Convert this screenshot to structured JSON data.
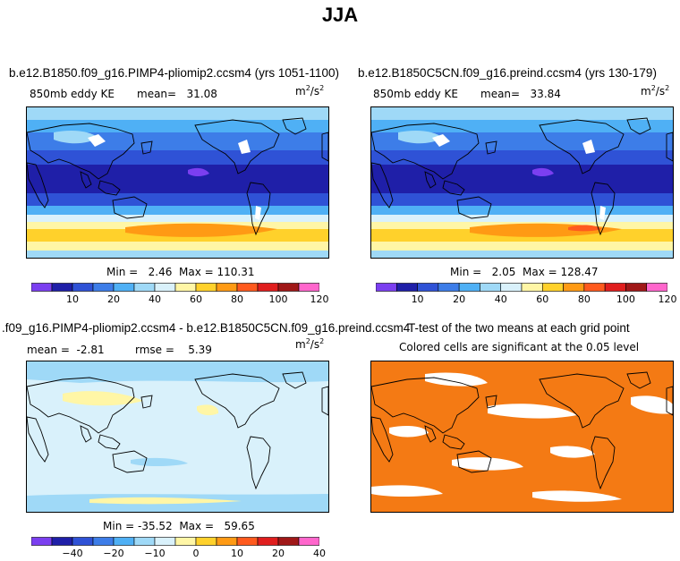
{
  "figure": {
    "title": "JJA"
  },
  "colors": {
    "bands": [
      "#7b3ff0",
      "#1f1fa8",
      "#2f52d6",
      "#3d7de8",
      "#4fb0f5",
      "#9fd9f7",
      "#d9f1fb",
      "#fff6a6",
      "#ffd12b",
      "#ff9a14",
      "#ff5a1e",
      "#e01e1e",
      "#a01818",
      "#ff66cc"
    ],
    "diff": [
      "#7b3ff0",
      "#1f1fa8",
      "#2f52d6",
      "#3d7de8",
      "#4fb0f5",
      "#9fd9f7",
      "#d9f1fb",
      "#fff6a6",
      "#ffd12b",
      "#ff9a14",
      "#ff5a1e",
      "#e01e1e",
      "#a01818",
      "#ff66cc"
    ],
    "ttest": "#f47a14",
    "land": "#ffffff"
  },
  "chart_data": [
    {
      "type": "heatmap",
      "title": "b.e12.B1850.f09_g16.PIMP4-pliomip2.ccsm4 (yrs 1051-1100)",
      "label": "850mb  eddy KE",
      "mean_label": "mean=",
      "mean": "31.08",
      "unit_base": "m",
      "unit_exp1": "2",
      "unit_mid": "/s",
      "unit_exp2": "2",
      "min_label": "Min =",
      "min": "2.46",
      "max_label": "Max =",
      "max": "110.31",
      "ticks": [
        "10",
        "20",
        "40",
        "60",
        "80",
        "100",
        "120"
      ]
    },
    {
      "type": "heatmap",
      "title": "b.e12.B1850C5CN.f09_g16.preind.ccsm4 (yrs 130-179)",
      "label": "850mb  eddy KE",
      "mean_label": "mean=",
      "mean": "33.84",
      "unit_base": "m",
      "unit_exp1": "2",
      "unit_mid": "/s",
      "unit_exp2": "2",
      "min_label": "Min =",
      "min": "2.05",
      "max_label": "Max =",
      "max": "128.47",
      "ticks": [
        "10",
        "20",
        "40",
        "60",
        "80",
        "100",
        "120"
      ]
    },
    {
      "type": "heatmap",
      "title": ".f09_g16.PIMP4-pliomip2.ccsm4 - b.e12.B1850C5CN.f09_g16.preind.ccsm4",
      "mean_label": "mean =",
      "mean": "-2.81",
      "rmse_label": "rmse =",
      "rmse": "5.39",
      "unit_base": "m",
      "unit_exp1": "2",
      "unit_mid": "/s",
      "unit_exp2": "2",
      "min_label": "Min =",
      "min": "-35.52",
      "max_label": "Max =",
      "max": "59.65",
      "ticks": [
        "−40",
        "−20",
        "−10",
        "0",
        "10",
        "20",
        "40"
      ]
    },
    {
      "type": "heatmap",
      "title": "T-test of the two means at each grid point",
      "subtitle": "Colored cells are significant at the 0.05 level"
    }
  ]
}
